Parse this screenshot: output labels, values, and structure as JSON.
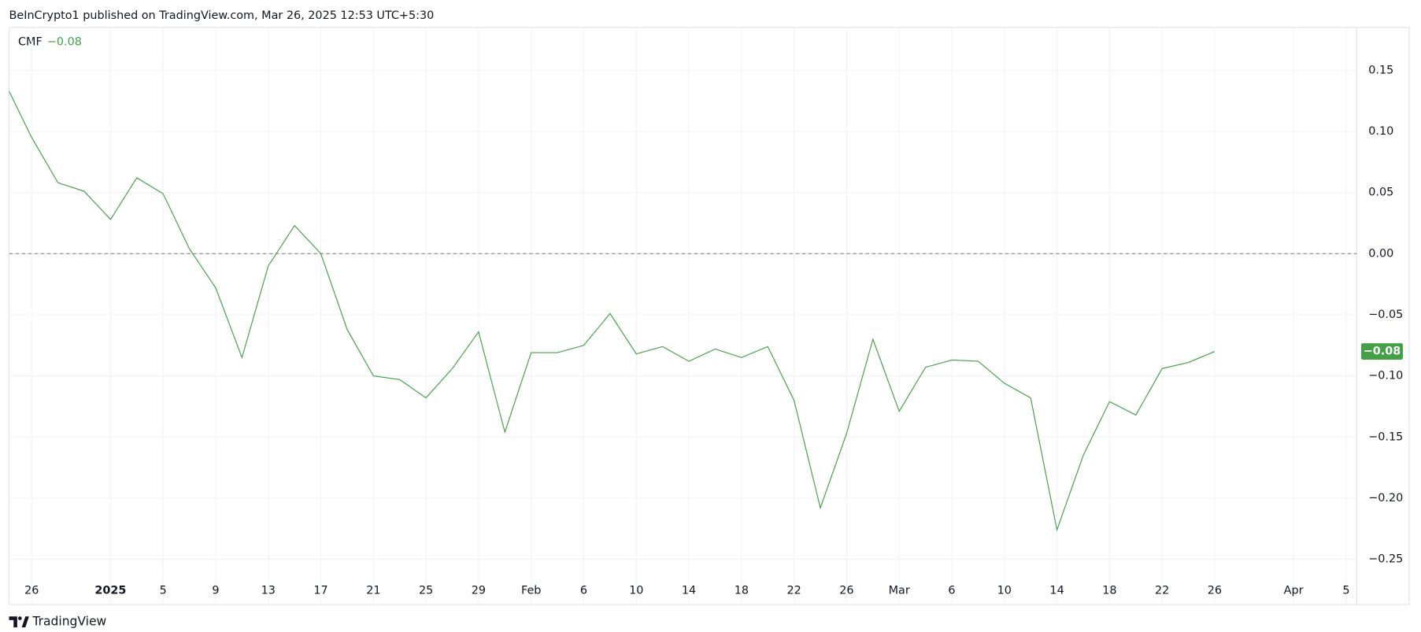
{
  "header": "BeInCrypto1 published on TradingView.com, Mar 26, 2025 12:53 UTC+5:30",
  "footer": "TradingView",
  "chart_data": {
    "type": "line",
    "series": [
      {
        "name": "CMF",
        "color": "#43a047",
        "values": [
          0.139,
          0.095,
          0.058,
          0.051,
          0.028,
          0.062,
          0.049,
          0.004,
          -0.028,
          -0.085,
          -0.01,
          0.023,
          0.0,
          -0.062,
          -0.1,
          -0.103,
          -0.118,
          -0.094,
          -0.064,
          -0.146,
          -0.081,
          -0.081,
          -0.075,
          -0.049,
          -0.082,
          -0.076,
          -0.088,
          -0.078,
          -0.085,
          -0.076,
          -0.12,
          -0.208,
          -0.147,
          -0.07,
          -0.129,
          -0.093,
          -0.087,
          -0.088,
          -0.106,
          -0.118,
          -0.226,
          -0.165,
          -0.121,
          -0.132,
          -0.094,
          -0.089,
          -0.08
        ],
        "value_labels": [
          null,
          null,
          null,
          null,
          null,
          null,
          null,
          null,
          null,
          null,
          null,
          null,
          null,
          null,
          null,
          null,
          null,
          null,
          null,
          null,
          null,
          null,
          null,
          null,
          null,
          null,
          null,
          null,
          null,
          null,
          null,
          null,
          null,
          null,
          null,
          null,
          null,
          null,
          null,
          null,
          null,
          null,
          null,
          null,
          null,
          null,
          "−0.08"
        ]
      }
    ],
    "xlim": [
      0.14,
      51.4
    ],
    "xticks": [
      {
        "value": 1,
        "label": "26"
      },
      {
        "value": 4,
        "label": "2025",
        "bold": true
      },
      {
        "value": 6,
        "label": "5"
      },
      {
        "value": 8,
        "label": "9"
      },
      {
        "value": 10,
        "label": "13"
      },
      {
        "value": 12,
        "label": "17"
      },
      {
        "value": 14,
        "label": "21"
      },
      {
        "value": 16,
        "label": "25"
      },
      {
        "value": 18,
        "label": "29"
      },
      {
        "value": 20,
        "label": "Feb"
      },
      {
        "value": 22,
        "label": "6"
      },
      {
        "value": 24,
        "label": "10"
      },
      {
        "value": 26,
        "label": "14"
      },
      {
        "value": 28,
        "label": "18"
      },
      {
        "value": 30,
        "label": "22"
      },
      {
        "value": 32,
        "label": "26"
      },
      {
        "value": 34,
        "label": "Mar"
      },
      {
        "value": 36,
        "label": "6"
      },
      {
        "value": 38,
        "label": "10"
      },
      {
        "value": 40,
        "label": "14"
      },
      {
        "value": 42,
        "label": "18"
      },
      {
        "value": 44,
        "label": "22"
      },
      {
        "value": 46,
        "label": "26"
      },
      {
        "value": 49,
        "label": "Apr"
      },
      {
        "value": 51,
        "label": "5"
      }
    ],
    "ylim": [
      -0.287,
      0.185
    ],
    "yticks": [
      {
        "value": 0.15,
        "label": "0.15"
      },
      {
        "value": 0.1,
        "label": "0.10"
      },
      {
        "value": 0.05,
        "label": "0.05"
      },
      {
        "value": 0,
        "label": "0.00"
      },
      {
        "value": -0.05,
        "label": "−0.05"
      },
      {
        "value": -0.1,
        "label": "−0.10"
      },
      {
        "value": -0.15,
        "label": "−0.15"
      },
      {
        "value": -0.2,
        "label": "−0.20"
      },
      {
        "value": -0.25,
        "label": "−0.25"
      }
    ],
    "grid": true,
    "zero_line": true
  }
}
